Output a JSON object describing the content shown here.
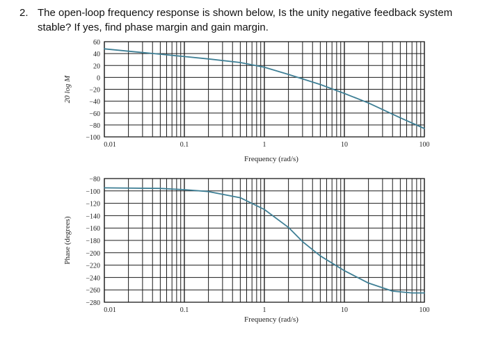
{
  "question": {
    "number": "2.",
    "text": "The open-loop frequency response is shown below, Is the unity negative feedback system stable? If yes, find phase margin and gain margin."
  },
  "colors": {
    "curve": "#3e7f95",
    "grid": "#1a1a1a"
  },
  "chart_data": [
    {
      "type": "line",
      "title": "",
      "xlabel": "Frequency (rad/s)",
      "ylabel": "20 log M",
      "xscale": "log",
      "xlim": [
        0.01,
        100
      ],
      "ylim": [
        -100,
        60
      ],
      "grid": true,
      "x_tick_labels": [
        "0.01",
        "0.1",
        "1",
        "10",
        "100"
      ],
      "y_tick_labels": [
        "60",
        "40",
        "20",
        "0",
        "-20",
        "-40",
        "-60",
        "-80",
        "-100"
      ],
      "series": [
        {
          "x": [
            0.01,
            0.02,
            0.05,
            0.1,
            0.2,
            0.5,
            1,
            2,
            5,
            10,
            20,
            50,
            100
          ],
          "y": [
            48,
            44,
            39,
            35,
            31,
            25,
            17,
            5,
            -12,
            -27,
            -43,
            -68,
            -86
          ]
        }
      ]
    },
    {
      "type": "line",
      "title": "",
      "xlabel": "Frequency (rad/s)",
      "ylabel": "Phase (degrees)",
      "xscale": "log",
      "xlim": [
        0.01,
        100
      ],
      "ylim": [
        -280,
        -80
      ],
      "grid": true,
      "x_tick_labels": [
        "0.01",
        "0.1",
        "1",
        "10",
        "100"
      ],
      "y_tick_labels": [
        "-80",
        "-100",
        "-120",
        "-140",
        "-160",
        "-180",
        "-200",
        "-220",
        "-240",
        "-260",
        "-280"
      ],
      "series": [
        {
          "x": [
            0.01,
            0.05,
            0.1,
            0.2,
            0.5,
            1,
            2,
            3,
            5,
            10,
            20,
            40,
            70,
            100
          ],
          "y": [
            -95,
            -96,
            -98,
            -101,
            -111,
            -130,
            -159,
            -182,
            -205,
            -229,
            -249,
            -262,
            -265,
            -265
          ]
        }
      ]
    }
  ]
}
